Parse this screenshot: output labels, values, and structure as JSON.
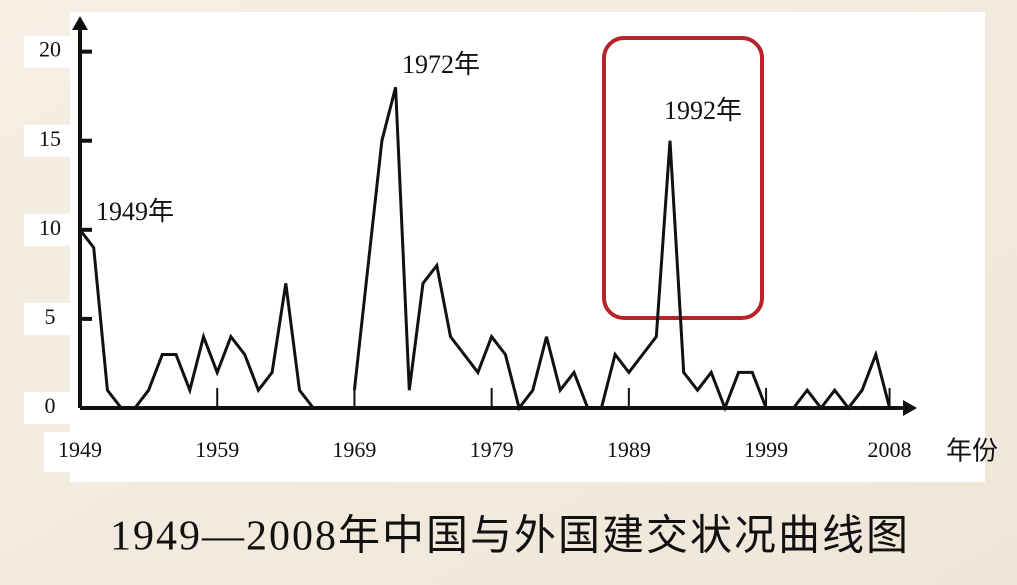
{
  "chart_data": {
    "type": "line",
    "title": "1949—2008年中国与外国建交状况曲线图",
    "x_label": "年份",
    "annotations": [
      "1949年",
      "1972年",
      "1992年"
    ],
    "color": "#111111",
    "x": [
      1949,
      1950,
      1951,
      1952,
      1953,
      1954,
      1955,
      1956,
      1957,
      1958,
      1959,
      1960,
      1961,
      1962,
      1963,
      1964,
      1965,
      1966,
      1967,
      1968,
      1969,
      1970,
      1971,
      1972,
      1973,
      1974,
      1975,
      1976,
      1977,
      1978,
      1979,
      1980,
      1981,
      1982,
      1983,
      1984,
      1985,
      1986,
      1987,
      1988,
      1989,
      1990,
      1991,
      1992,
      1993,
      1994,
      1995,
      1996,
      1997,
      1998,
      1999,
      2000,
      2001,
      2002,
      2003,
      2004,
      2005,
      2006,
      2007,
      2008
    ],
    "values": [
      10,
      9,
      1,
      0,
      0,
      1,
      3,
      3,
      1,
      4,
      2,
      4,
      3,
      1,
      2,
      7,
      1,
      0,
      null,
      null,
      1,
      8,
      15,
      18,
      1,
      7,
      8,
      4,
      3,
      2,
      4,
      3,
      0,
      1,
      4,
      1,
      2,
      0,
      0,
      3,
      2,
      3,
      4,
      15,
      2,
      1,
      2,
      0,
      2,
      2,
      0,
      null,
      0,
      1,
      0,
      1,
      0,
      1,
      3,
      0
    ],
    "xlim": [
      1949,
      2010
    ],
    "xticks": [
      1949,
      1959,
      1969,
      1979,
      1989,
      1999,
      2008
    ],
    "ylim": [
      0,
      22
    ],
    "yticks": [
      0,
      5,
      10,
      15,
      20
    ]
  }
}
